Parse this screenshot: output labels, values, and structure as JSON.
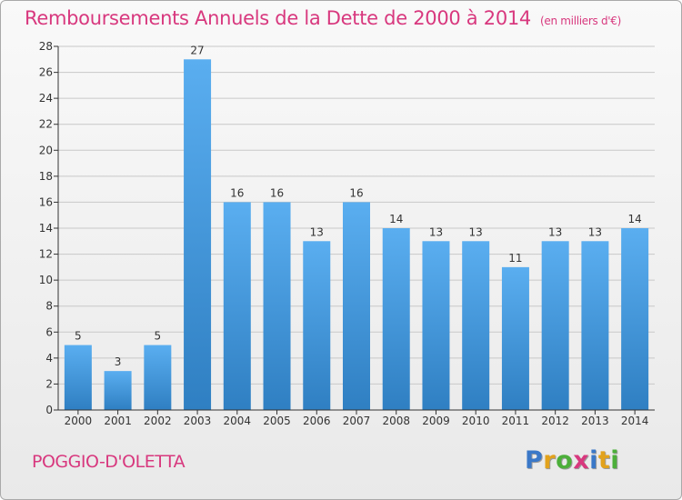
{
  "chart_data": {
    "type": "bar",
    "title": "Remboursements Annuels de la Dette de 2000 à 2014",
    "unit": "(en milliers d'€)",
    "categories": [
      "2000",
      "2001",
      "2002",
      "2003",
      "2004",
      "2005",
      "2006",
      "2007",
      "2008",
      "2009",
      "2010",
      "2011",
      "2012",
      "2013",
      "2014"
    ],
    "values": [
      5,
      3,
      5,
      27,
      16,
      16,
      13,
      16,
      14,
      13,
      13,
      11,
      13,
      13,
      14
    ],
    "ylim": [
      0,
      28
    ],
    "yticks": [
      0,
      2,
      4,
      6,
      8,
      10,
      12,
      14,
      16,
      18,
      20,
      22,
      24,
      26,
      28
    ],
    "grid": true,
    "xlabel": "",
    "ylabel": "",
    "bar_color": "#4a9ee0"
  },
  "footer": {
    "town": "POGGIO-D'OLETTA",
    "brand": "Proxiti",
    "brand_colors": [
      "#3a78c8",
      "#e2a21c",
      "#4caf3a",
      "#d8387e",
      "#3a78c8",
      "#e2a21c",
      "#4caf3a"
    ]
  },
  "colors": {
    "accent": "#d8387e",
    "grid": "#c8c8c8",
    "axis": "#333333"
  }
}
